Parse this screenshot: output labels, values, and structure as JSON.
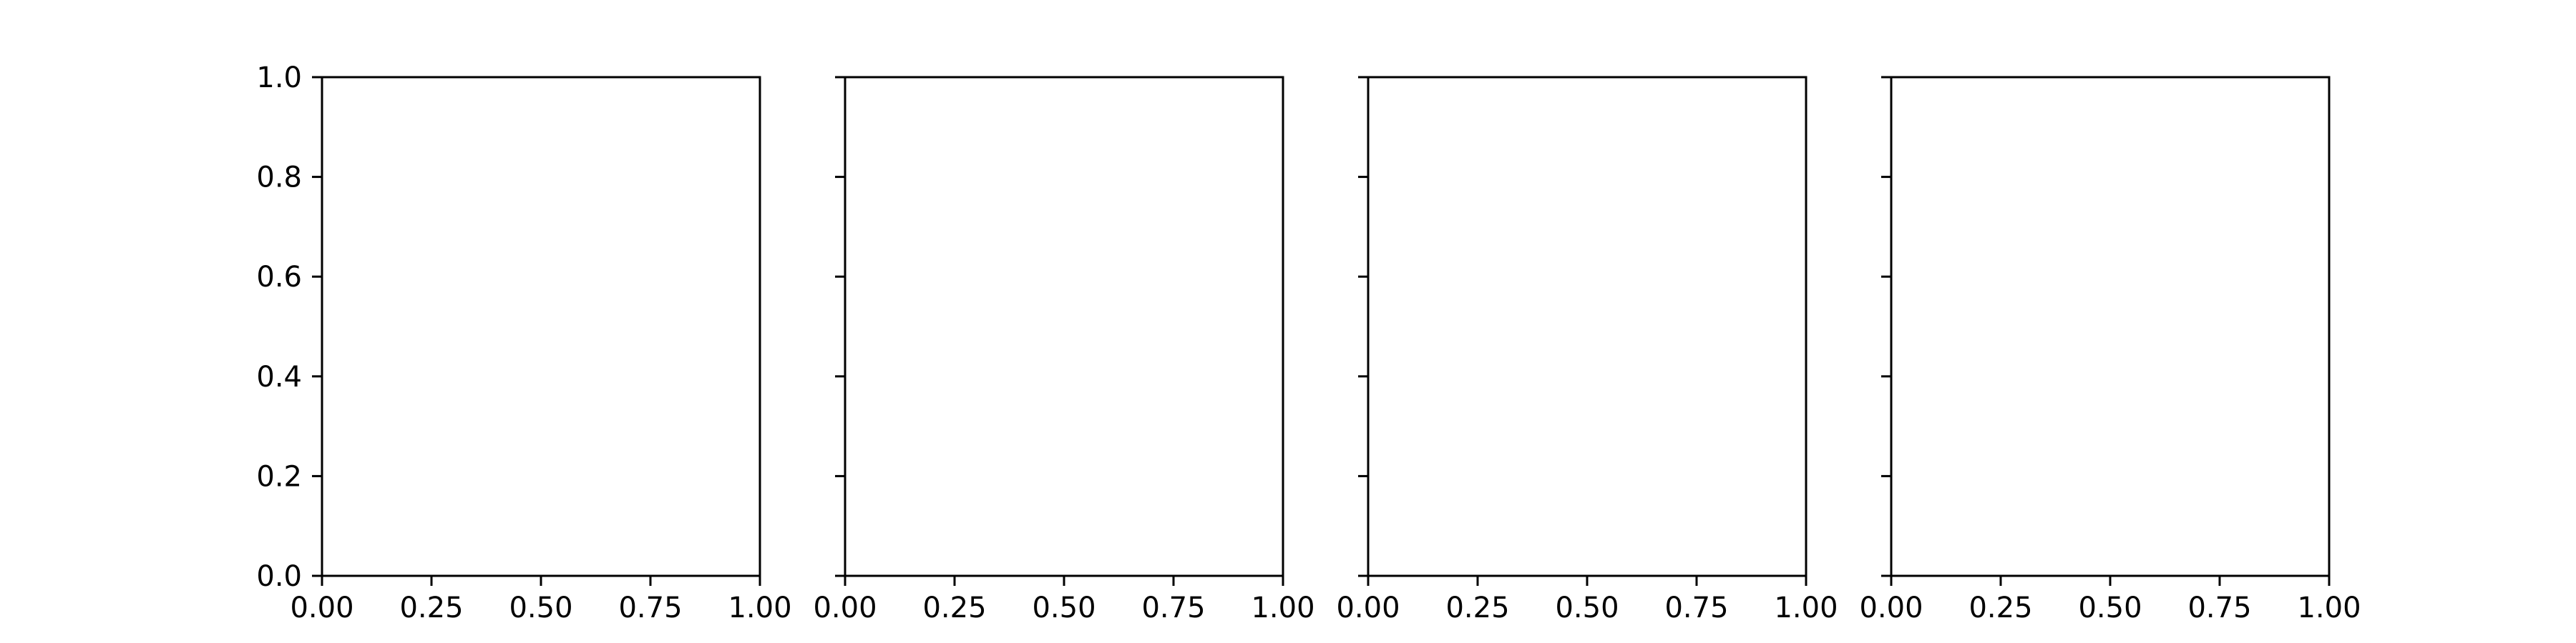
{
  "chart_data": [
    {
      "type": "scatter",
      "title": "",
      "xlabel": "",
      "ylabel": "",
      "xlim": [
        0,
        1
      ],
      "ylim": [
        0,
        1
      ],
      "x_ticks": [
        "0.00",
        "0.25",
        "0.50",
        "0.75",
        "1.00"
      ],
      "y_ticks": [
        "0.0",
        "0.2",
        "0.4",
        "0.6",
        "0.8",
        "1.0"
      ],
      "y_tick_labels_shown": true,
      "grid": false,
      "series": []
    },
    {
      "type": "scatter",
      "title": "",
      "xlabel": "",
      "ylabel": "",
      "xlim": [
        0,
        1
      ],
      "ylim": [
        0,
        1
      ],
      "x_ticks": [
        "0.00",
        "0.25",
        "0.50",
        "0.75",
        "1.00"
      ],
      "y_ticks": [
        "0.0",
        "0.2",
        "0.4",
        "0.6",
        "0.8",
        "1.0"
      ],
      "y_tick_labels_shown": false,
      "grid": false,
      "series": []
    },
    {
      "type": "scatter",
      "title": "",
      "xlabel": "",
      "ylabel": "",
      "xlim": [
        0,
        1
      ],
      "ylim": [
        0,
        1
      ],
      "x_ticks": [
        "0.00",
        "0.25",
        "0.50",
        "0.75",
        "1.00"
      ],
      "y_ticks": [
        "0.0",
        "0.2",
        "0.4",
        "0.6",
        "0.8",
        "1.0"
      ],
      "y_tick_labels_shown": false,
      "grid": false,
      "series": []
    },
    {
      "type": "scatter",
      "title": "",
      "xlabel": "",
      "ylabel": "",
      "xlim": [
        0,
        1
      ],
      "ylim": [
        0,
        1
      ],
      "x_ticks": [
        "0.00",
        "0.25",
        "0.50",
        "0.75",
        "1.00"
      ],
      "y_ticks": [
        "0.0",
        "0.2",
        "0.4",
        "0.6",
        "0.8",
        "1.0"
      ],
      "y_tick_labels_shown": false,
      "grid": false,
      "series": []
    }
  ]
}
